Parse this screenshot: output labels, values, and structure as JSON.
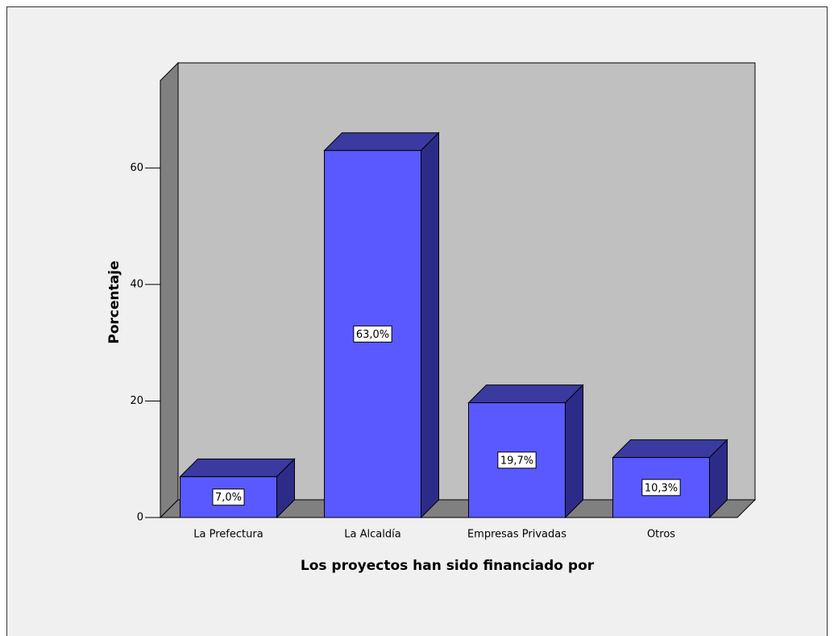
{
  "chart_data": {
    "type": "bar3d",
    "x_label": "Los proyectos han sido financiado por",
    "y_label": "Porcentaje",
    "categories": [
      "La Prefectura",
      "La Alcaldía",
      "Empresas Privadas",
      "Otros"
    ],
    "values": [
      7.0,
      63.0,
      19.7,
      10.3
    ],
    "value_labels": [
      "7,0%",
      "63,0%",
      "19,7%",
      "10,3%"
    ],
    "color": "#5959ff",
    "ylim": [
      0,
      75
    ],
    "yticks": [
      0,
      20,
      40,
      60
    ]
  }
}
